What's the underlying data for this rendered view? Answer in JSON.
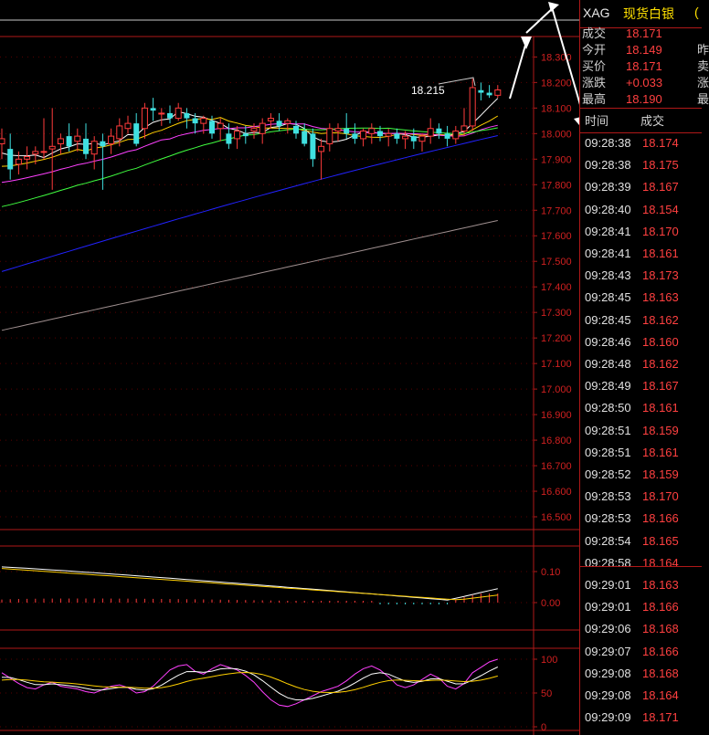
{
  "header": {
    "symbol": "XAG",
    "name": "现货白银",
    "name_tail": "("
  },
  "quote": [
    {
      "label": "成交",
      "value": "18.171",
      "tail": ""
    },
    {
      "label": "今开",
      "value": "18.149",
      "tail": "昨"
    },
    {
      "label": "买价",
      "value": "18.171",
      "tail": "卖"
    },
    {
      "label": "涨跌",
      "value": "+0.033",
      "tail": "涨"
    },
    {
      "label": "最高",
      "value": "18.190",
      "tail": "最"
    }
  ],
  "ticks_header": {
    "time": "时间",
    "price": "成交"
  },
  "ticks": [
    {
      "time": "09:28:38",
      "price": "18.174"
    },
    {
      "time": "09:28:38",
      "price": "18.175"
    },
    {
      "time": "09:28:39",
      "price": "18.167"
    },
    {
      "time": "09:28:40",
      "price": "18.154"
    },
    {
      "time": "09:28:41",
      "price": "18.170"
    },
    {
      "time": "09:28:41",
      "price": "18.161"
    },
    {
      "time": "09:28:43",
      "price": "18.173"
    },
    {
      "time": "09:28:45",
      "price": "18.163"
    },
    {
      "time": "09:28:45",
      "price": "18.162"
    },
    {
      "time": "09:28:46",
      "price": "18.160"
    },
    {
      "time": "09:28:48",
      "price": "18.162"
    },
    {
      "time": "09:28:49",
      "price": "18.167"
    },
    {
      "time": "09:28:50",
      "price": "18.161"
    },
    {
      "time": "09:28:51",
      "price": "18.159"
    },
    {
      "time": "09:28:51",
      "price": "18.161"
    },
    {
      "time": "09:28:52",
      "price": "18.159"
    },
    {
      "time": "09:28:53",
      "price": "18.170"
    },
    {
      "time": "09:28:53",
      "price": "18.166"
    },
    {
      "time": "09:28:54",
      "price": "18.165"
    },
    {
      "time": "09:28:58",
      "price": "18.164"
    },
    {
      "time": "09:29:01",
      "price": "18.163"
    },
    {
      "time": "09:29:01",
      "price": "18.166"
    },
    {
      "time": "09:29:06",
      "price": "18.168"
    },
    {
      "time": "09:29:07",
      "price": "18.166"
    },
    {
      "time": "09:29:08",
      "price": "18.168"
    },
    {
      "time": "09:29:08",
      "price": "18.164"
    },
    {
      "time": "09:29:09",
      "price": "18.171"
    }
  ],
  "chart_data": {
    "type": "candlestick",
    "price_axis": {
      "ticks": [
        "18.300",
        "18.200",
        "18.100",
        "18.000",
        "17.900",
        "17.800",
        "17.700",
        "17.600",
        "17.500",
        "17.400",
        "17.300",
        "17.200",
        "17.100",
        "17.000",
        "16.900",
        "16.800",
        "16.700",
        "16.600",
        "16.500"
      ],
      "min": 16.45,
      "max": 18.38
    },
    "peak_label": "18.215",
    "macd_axis": {
      "ticks": [
        "0.10",
        "0.00"
      ]
    },
    "kdj_axis": {
      "ticks": [
        "100",
        "50",
        "0"
      ]
    },
    "candles": [
      {
        "o": 17.96,
        "h": 18.02,
        "l": 17.9,
        "c": 17.98
      },
      {
        "o": 17.94,
        "h": 18.0,
        "l": 17.82,
        "c": 17.86
      },
      {
        "o": 17.88,
        "h": 17.93,
        "l": 17.84,
        "c": 17.9
      },
      {
        "o": 17.9,
        "h": 17.95,
        "l": 17.86,
        "c": 17.91
      },
      {
        "o": 17.92,
        "h": 17.95,
        "l": 17.88,
        "c": 17.93
      },
      {
        "o": 17.93,
        "h": 18.06,
        "l": 17.9,
        "c": 17.93
      },
      {
        "o": 17.94,
        "h": 18.1,
        "l": 17.78,
        "c": 17.95
      },
      {
        "o": 17.96,
        "h": 18.0,
        "l": 17.92,
        "c": 17.98
      },
      {
        "o": 17.99,
        "h": 18.04,
        "l": 17.93,
        "c": 17.95
      },
      {
        "o": 17.97,
        "h": 18.02,
        "l": 17.93,
        "c": 17.99
      },
      {
        "o": 17.98,
        "h": 18.04,
        "l": 17.9,
        "c": 17.92
      },
      {
        "o": 17.92,
        "h": 17.99,
        "l": 17.86,
        "c": 17.97
      },
      {
        "o": 17.97,
        "h": 18.0,
        "l": 17.78,
        "c": 17.95
      },
      {
        "o": 17.96,
        "h": 18.02,
        "l": 17.92,
        "c": 17.99
      },
      {
        "o": 17.98,
        "h": 18.06,
        "l": 17.95,
        "c": 18.03
      },
      {
        "o": 18.02,
        "h": 18.07,
        "l": 18.0,
        "c": 18.04
      },
      {
        "o": 18.04,
        "h": 18.08,
        "l": 17.95,
        "c": 17.96
      },
      {
        "o": 18.02,
        "h": 18.12,
        "l": 17.98,
        "c": 18.1
      },
      {
        "o": 18.1,
        "h": 18.14,
        "l": 18.05,
        "c": 18.09
      },
      {
        "o": 18.08,
        "h": 18.1,
        "l": 18.03,
        "c": 18.08
      },
      {
        "o": 18.08,
        "h": 18.11,
        "l": 18.04,
        "c": 18.06
      },
      {
        "o": 18.06,
        "h": 18.12,
        "l": 18.05,
        "c": 18.1
      },
      {
        "o": 18.08,
        "h": 18.1,
        "l": 18.02,
        "c": 18.06
      },
      {
        "o": 18.06,
        "h": 18.08,
        "l": 18.0,
        "c": 18.04
      },
      {
        "o": 18.04,
        "h": 18.07,
        "l": 18.0,
        "c": 18.06
      },
      {
        "o": 18.05,
        "h": 18.07,
        "l": 17.98,
        "c": 18.0
      },
      {
        "o": 18.02,
        "h": 18.06,
        "l": 17.97,
        "c": 18.04
      },
      {
        "o": 18.0,
        "h": 18.04,
        "l": 17.94,
        "c": 17.96
      },
      {
        "o": 17.98,
        "h": 18.03,
        "l": 17.94,
        "c": 18.01
      },
      {
        "o": 18.0,
        "h": 18.03,
        "l": 17.96,
        "c": 17.99
      },
      {
        "o": 18.01,
        "h": 18.04,
        "l": 17.98,
        "c": 18.02
      },
      {
        "o": 18.0,
        "h": 18.06,
        "l": 17.96,
        "c": 18.04
      },
      {
        "o": 18.05,
        "h": 18.08,
        "l": 18.02,
        "c": 18.06
      },
      {
        "o": 18.05,
        "h": 18.08,
        "l": 18.01,
        "c": 18.03
      },
      {
        "o": 18.04,
        "h": 18.06,
        "l": 18.0,
        "c": 18.05
      },
      {
        "o": 18.03,
        "h": 18.05,
        "l": 17.98,
        "c": 18.0
      },
      {
        "o": 18.01,
        "h": 18.04,
        "l": 17.95,
        "c": 17.96
      },
      {
        "o": 18.0,
        "h": 18.02,
        "l": 17.87,
        "c": 17.9
      },
      {
        "o": 17.93,
        "h": 17.98,
        "l": 17.82,
        "c": 17.95
      },
      {
        "o": 17.96,
        "h": 18.04,
        "l": 17.93,
        "c": 18.02
      },
      {
        "o": 18.01,
        "h": 18.04,
        "l": 17.97,
        "c": 18.02
      },
      {
        "o": 18.02,
        "h": 18.08,
        "l": 17.98,
        "c": 18.0
      },
      {
        "o": 18.0,
        "h": 18.04,
        "l": 17.96,
        "c": 17.98
      },
      {
        "o": 17.98,
        "h": 18.02,
        "l": 17.95,
        "c": 18.01
      },
      {
        "o": 18.0,
        "h": 18.04,
        "l": 17.96,
        "c": 18.02
      },
      {
        "o": 18.01,
        "h": 18.03,
        "l": 17.97,
        "c": 17.99
      },
      {
        "o": 17.99,
        "h": 18.02,
        "l": 17.95,
        "c": 18.0
      },
      {
        "o": 18.0,
        "h": 18.02,
        "l": 17.96,
        "c": 17.98
      },
      {
        "o": 17.98,
        "h": 18.01,
        "l": 17.94,
        "c": 17.99
      },
      {
        "o": 17.99,
        "h": 18.02,
        "l": 17.94,
        "c": 17.97
      },
      {
        "o": 17.97,
        "h": 18.0,
        "l": 17.93,
        "c": 17.99
      },
      {
        "o": 17.99,
        "h": 18.06,
        "l": 17.96,
        "c": 18.02
      },
      {
        "o": 18.02,
        "h": 18.04,
        "l": 17.98,
        "c": 18.0
      },
      {
        "o": 18.0,
        "h": 18.03,
        "l": 17.95,
        "c": 17.98
      },
      {
        "o": 17.98,
        "h": 18.03,
        "l": 17.96,
        "c": 18.01
      },
      {
        "o": 18.01,
        "h": 18.1,
        "l": 17.99,
        "c": 18.03
      },
      {
        "o": 18.03,
        "h": 18.215,
        "l": 18.01,
        "c": 18.18
      },
      {
        "o": 18.17,
        "h": 18.2,
        "l": 18.13,
        "c": 18.16
      },
      {
        "o": 18.16,
        "h": 18.19,
        "l": 18.14,
        "c": 18.15
      },
      {
        "o": 18.15,
        "h": 18.19,
        "l": 18.14,
        "c": 18.171
      }
    ]
  }
}
